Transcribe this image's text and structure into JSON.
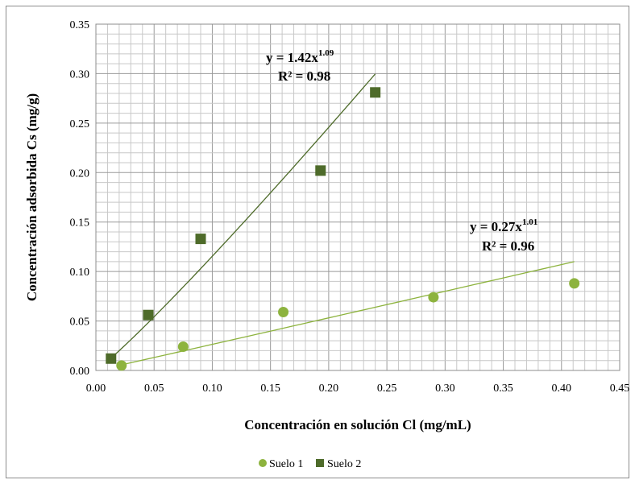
{
  "chart_data": {
    "type": "scatter",
    "xlabel": "Concentración en solución Cl (mg/mL)",
    "ylabel": "Concentración adsorbida Cs (mg/g)",
    "xlim": [
      0,
      0.45
    ],
    "ylim": [
      0,
      0.35
    ],
    "x_ticks": [
      "0.00",
      "0.05",
      "0.10",
      "0.15",
      "0.20",
      "0.25",
      "0.30",
      "0.35",
      "0.40",
      "0.45"
    ],
    "y_ticks": [
      "0.00",
      "0.05",
      "0.10",
      "0.15",
      "0.20",
      "0.25",
      "0.30",
      "0.35"
    ],
    "grid": true,
    "legend_position": "bottom",
    "series": [
      {
        "name": "Suelo 1",
        "marker": "circle",
        "color": "#8db33e",
        "points": [
          [
            0.022,
            0.005
          ],
          [
            0.075,
            0.024
          ],
          [
            0.161,
            0.059
          ],
          [
            0.29,
            0.074
          ],
          [
            0.411,
            0.088
          ]
        ],
        "trendline": {
          "a": 0.27,
          "b": 1.01,
          "x_range": [
            0.022,
            0.411
          ]
        }
      },
      {
        "name": "Suelo 2",
        "marker": "square",
        "color": "#4e6b2a",
        "points": [
          [
            0.013,
            0.012
          ],
          [
            0.045,
            0.056
          ],
          [
            0.09,
            0.133
          ],
          [
            0.193,
            0.202
          ],
          [
            0.24,
            0.281
          ]
        ],
        "trendline": {
          "a": 1.42,
          "b": 1.09,
          "x_range": [
            0.013,
            0.24
          ]
        }
      }
    ],
    "annotations": {
      "suelo2_eq": {
        "base": "y = 1.42x",
        "exp": "1.09"
      },
      "suelo2_r2": "R² = 0.98",
      "suelo1_eq": {
        "base": "y = 0.27x",
        "exp": "1.01"
      },
      "suelo1_r2": "R² = 0.96"
    }
  }
}
